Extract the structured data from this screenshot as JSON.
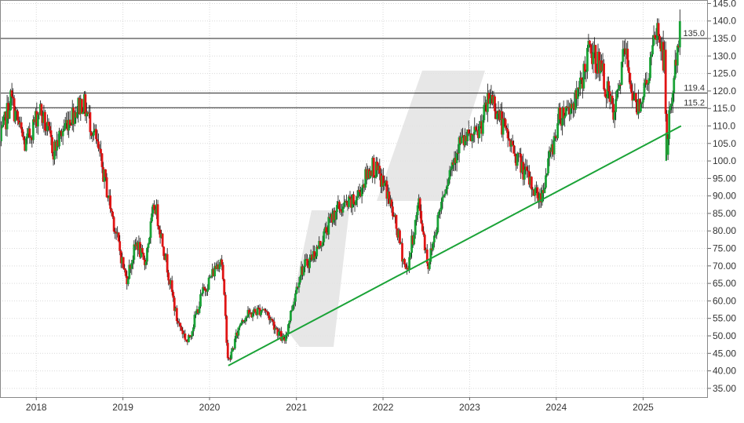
{
  "chart_data": {
    "type": "candlestick",
    "x_tick_labels": [
      "2018",
      "2019",
      "2020",
      "2021",
      "2022",
      "2023",
      "2024",
      "2025"
    ],
    "y_tick_labels": [
      "35.00",
      "40.00",
      "45.00",
      "50.00",
      "55.00",
      "60.00",
      "65.00",
      "70.00",
      "75.00",
      "80.00",
      "85.00",
      "90.00",
      "95.00",
      "100.0",
      "105.0",
      "110.0",
      "115.0",
      "120.0",
      "125.0",
      "130.0",
      "135.0",
      "140.0",
      "145.0"
    ],
    "ylim": [
      32.5,
      146
    ],
    "xlim": [
      "2017-08-01",
      "2025-10-01"
    ],
    "grid": true,
    "horizontal_levels": [
      {
        "label": "135.0",
        "value": 135.0
      },
      {
        "label": "119.4",
        "value": 119.4
      },
      {
        "label": "115.2",
        "value": 115.2
      }
    ],
    "trendline": {
      "start": [
        "2020-03-20",
        41.5
      ],
      "end": [
        "2025-06-10",
        110.0
      ],
      "color": "#1aa337"
    },
    "price_path": [
      [
        "2017-08-01",
        105
      ],
      [
        "2017-09-15",
        118
      ],
      [
        "2017-11-15",
        104
      ],
      [
        "2018-01-15",
        115
      ],
      [
        "2018-03-15",
        103
      ],
      [
        "2018-05-15",
        112
      ],
      [
        "2018-07-15",
        117
      ],
      [
        "2018-09-01",
        108
      ],
      [
        "2018-10-15",
        95
      ],
      [
        "2018-12-01",
        80
      ],
      [
        "2019-01-15",
        66
      ],
      [
        "2019-03-01",
        77
      ],
      [
        "2019-04-01",
        70
      ],
      [
        "2019-05-15",
        88
      ],
      [
        "2019-07-01",
        72
      ],
      [
        "2019-08-15",
        55
      ],
      [
        "2019-10-01",
        48
      ],
      [
        "2019-12-01",
        62
      ],
      [
        "2020-01-15",
        68
      ],
      [
        "2020-02-20",
        73
      ],
      [
        "2020-03-20",
        42
      ],
      [
        "2020-05-15",
        55
      ],
      [
        "2020-08-15",
        58
      ],
      [
        "2020-10-01",
        53
      ],
      [
        "2020-11-10",
        48
      ],
      [
        "2021-01-15",
        68
      ],
      [
        "2021-04-01",
        75
      ],
      [
        "2021-06-15",
        86
      ],
      [
        "2021-09-01",
        88
      ],
      [
        "2021-11-15",
        99
      ],
      [
        "2022-01-15",
        92
      ],
      [
        "2022-03-01",
        80
      ],
      [
        "2022-04-10",
        68
      ],
      [
        "2022-06-01",
        88
      ],
      [
        "2022-07-10",
        70
      ],
      [
        "2022-09-15",
        92
      ],
      [
        "2022-11-15",
        105
      ],
      [
        "2023-02-01",
        107
      ],
      [
        "2023-04-01",
        119
      ],
      [
        "2023-06-01",
        108
      ],
      [
        "2023-09-01",
        95
      ],
      [
        "2023-10-25",
        89
      ],
      [
        "2024-01-15",
        113
      ],
      [
        "2024-04-01",
        118
      ],
      [
        "2024-05-15",
        131
      ],
      [
        "2024-07-01",
        128
      ],
      [
        "2024-09-01",
        112
      ],
      [
        "2024-10-15",
        132
      ],
      [
        "2024-12-01",
        115
      ],
      [
        "2025-01-15",
        122
      ],
      [
        "2025-03-01",
        138
      ],
      [
        "2025-04-01",
        128
      ],
      [
        "2025-04-10",
        102
      ],
      [
        "2025-04-25",
        115
      ],
      [
        "2025-06-05",
        137
      ]
    ],
    "up_color": "#1aa337",
    "down_color": "#e01515",
    "watermark_color": "#e3e3e3"
  }
}
